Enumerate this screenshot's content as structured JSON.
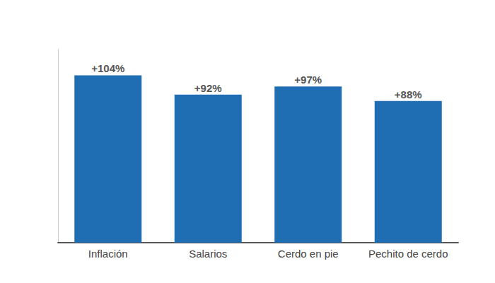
{
  "chart_data": {
    "type": "bar",
    "categories": [
      "Inflación",
      "Salarios",
      "Cerdo en pie",
      "Pechito de cerdo"
    ],
    "values": [
      104,
      92,
      97,
      88
    ],
    "value_labels": [
      "+104%",
      "+92%",
      "+97%",
      "+88%"
    ],
    "color": "#1f6db3",
    "ylim": [
      0,
      120
    ],
    "grid": false,
    "data_labels": true,
    "tick_labels": "x"
  }
}
